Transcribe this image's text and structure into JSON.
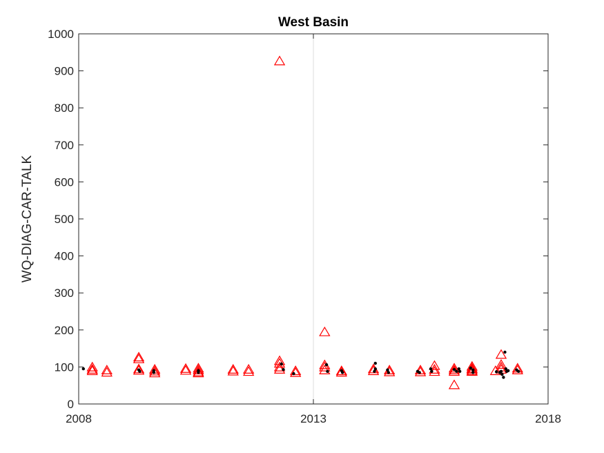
{
  "chart_data": {
    "type": "scatter",
    "title": "West Basin",
    "xlabel": "",
    "ylabel": "WQ-DIAG-CAR-TALK",
    "xlim": [
      2008,
      2018
    ],
    "ylim": [
      0,
      1000
    ],
    "x_ticks": [
      2008,
      2013,
      2018
    ],
    "x_tick_labels": [
      "2008",
      "2013",
      "2018"
    ],
    "y_ticks": [
      0,
      100,
      200,
      300,
      400,
      500,
      600,
      700,
      800,
      900,
      1000
    ],
    "y_tick_labels": [
      "0",
      "100",
      "200",
      "300",
      "400",
      "500",
      "600",
      "700",
      "800",
      "900",
      "1000"
    ],
    "grid": "vertical-at-2013",
    "series": [
      {
        "marker": "triangle-open",
        "color": "#ff0000",
        "points": [
          [
            2008.29,
            98
          ],
          [
            2008.29,
            92
          ],
          [
            2008.29,
            88
          ],
          [
            2008.6,
            90
          ],
          [
            2008.6,
            84
          ],
          [
            2009.28,
            125
          ],
          [
            2009.28,
            120
          ],
          [
            2009.28,
            93
          ],
          [
            2009.28,
            89
          ],
          [
            2009.62,
            92
          ],
          [
            2009.62,
            87
          ],
          [
            2009.62,
            82
          ],
          [
            2010.28,
            94
          ],
          [
            2010.28,
            89
          ],
          [
            2010.55,
            95
          ],
          [
            2010.55,
            90
          ],
          [
            2010.55,
            85
          ],
          [
            2010.55,
            82
          ],
          [
            2011.29,
            92
          ],
          [
            2011.29,
            87
          ],
          [
            2011.62,
            92
          ],
          [
            2011.62,
            86
          ],
          [
            2012.28,
            925
          ],
          [
            2012.28,
            115
          ],
          [
            2012.28,
            108
          ],
          [
            2012.28,
            98
          ],
          [
            2012.28,
            92
          ],
          [
            2012.62,
            88
          ],
          [
            2012.62,
            83
          ],
          [
            2013.24,
            193
          ],
          [
            2013.24,
            104
          ],
          [
            2013.24,
            98
          ],
          [
            2013.24,
            90
          ],
          [
            2013.6,
            88
          ],
          [
            2013.6,
            84
          ],
          [
            2014.28,
            93
          ],
          [
            2014.28,
            88
          ],
          [
            2014.62,
            90
          ],
          [
            2014.62,
            85
          ],
          [
            2015.28,
            90
          ],
          [
            2015.28,
            85
          ],
          [
            2015.58,
            102
          ],
          [
            2015.58,
            92
          ],
          [
            2015.58,
            86
          ],
          [
            2016.0,
            50
          ],
          [
            2016.0,
            95
          ],
          [
            2016.0,
            90
          ],
          [
            2016.0,
            86
          ],
          [
            2016.38,
            100
          ],
          [
            2016.38,
            95
          ],
          [
            2016.38,
            92
          ],
          [
            2016.38,
            88
          ],
          [
            2016.38,
            86
          ],
          [
            2016.88,
            88
          ],
          [
            2017.0,
            132
          ],
          [
            2017.0,
            105
          ],
          [
            2017.0,
            98
          ],
          [
            2017.0,
            92
          ],
          [
            2017.35,
            95
          ],
          [
            2017.35,
            90
          ]
        ]
      },
      {
        "marker": "dot",
        "color": "#000000",
        "points": [
          [
            2008.1,
            95
          ],
          [
            2009.28,
            92
          ],
          [
            2009.3,
            88
          ],
          [
            2009.6,
            90
          ],
          [
            2009.6,
            85
          ],
          [
            2010.55,
            90
          ],
          [
            2010.55,
            85
          ],
          [
            2012.32,
            108
          ],
          [
            2012.36,
            93
          ],
          [
            2012.58,
            82
          ],
          [
            2013.28,
            106
          ],
          [
            2013.3,
            88
          ],
          [
            2013.6,
            90
          ],
          [
            2013.62,
            85
          ],
          [
            2014.32,
            110
          ],
          [
            2014.32,
            95
          ],
          [
            2014.3,
            88
          ],
          [
            2014.58,
            92
          ],
          [
            2014.6,
            85
          ],
          [
            2015.22,
            88
          ],
          [
            2015.26,
            85
          ],
          [
            2015.5,
            95
          ],
          [
            2015.52,
            88
          ],
          [
            2016.0,
            93
          ],
          [
            2016.05,
            88
          ],
          [
            2016.1,
            95
          ],
          [
            2016.12,
            88
          ],
          [
            2016.35,
            97
          ],
          [
            2016.4,
            92
          ],
          [
            2016.4,
            85
          ],
          [
            2016.9,
            87
          ],
          [
            2016.97,
            85
          ],
          [
            2017.0,
            88
          ],
          [
            2017.02,
            80
          ],
          [
            2017.05,
            72
          ],
          [
            2017.08,
            140
          ],
          [
            2017.1,
            95
          ],
          [
            2017.12,
            88
          ],
          [
            2017.15,
            90
          ],
          [
            2017.33,
            92
          ],
          [
            2017.37,
            88
          ]
        ]
      }
    ]
  },
  "colors": {
    "axis": "#262626",
    "grid": "#dcdcdc",
    "marker_red": "#ff0000",
    "marker_black": "#000000"
  }
}
